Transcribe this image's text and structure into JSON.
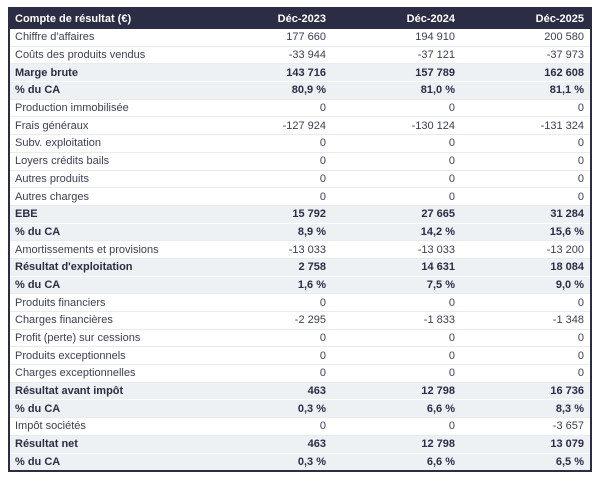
{
  "chart_data": {
    "type": "table",
    "title": "Compte de résultat (€)",
    "columns": [
      "Compte de résultat (€)",
      "Déc-2023",
      "Déc-2024",
      "Déc-2025"
    ],
    "rows": [
      {
        "label": "Chiffre d'affaires",
        "values": [
          "177 660",
          "194 910",
          "200 580"
        ],
        "emphasis": false
      },
      {
        "label": "Coûts des produits vendus",
        "values": [
          "-33 944",
          "-37 121",
          "-37 973"
        ],
        "emphasis": false
      },
      {
        "label": "Marge brute",
        "values": [
          "143 716",
          "157 789",
          "162 608"
        ],
        "emphasis": true
      },
      {
        "label": "% du CA",
        "values": [
          "80,9 %",
          "81,0 %",
          "81,1 %"
        ],
        "emphasis": true
      },
      {
        "label": "Production immobilisée",
        "values": [
          "0",
          "0",
          "0"
        ],
        "emphasis": false
      },
      {
        "label": "Frais généraux",
        "values": [
          "-127 924",
          "-130 124",
          "-131 324"
        ],
        "emphasis": false
      },
      {
        "label": "Subv. exploitation",
        "values": [
          "0",
          "0",
          "0"
        ],
        "emphasis": false
      },
      {
        "label": "Loyers crédits bails",
        "values": [
          "0",
          "0",
          "0"
        ],
        "emphasis": false
      },
      {
        "label": "Autres produits",
        "values": [
          "0",
          "0",
          "0"
        ],
        "emphasis": false
      },
      {
        "label": "Autres charges",
        "values": [
          "0",
          "0",
          "0"
        ],
        "emphasis": false
      },
      {
        "label": "EBE",
        "values": [
          "15 792",
          "27 665",
          "31 284"
        ],
        "emphasis": true
      },
      {
        "label": "% du CA",
        "values": [
          "8,9 %",
          "14,2 %",
          "15,6 %"
        ],
        "emphasis": true
      },
      {
        "label": "Amortissements et provisions",
        "values": [
          "-13 033",
          "-13 033",
          "-13 200"
        ],
        "emphasis": false
      },
      {
        "label": "Résultat d'exploitation",
        "values": [
          "2 758",
          "14 631",
          "18 084"
        ],
        "emphasis": true
      },
      {
        "label": "% du CA",
        "values": [
          "1,6 %",
          "7,5 %",
          "9,0 %"
        ],
        "emphasis": true
      },
      {
        "label": "Produits financiers",
        "values": [
          "0",
          "0",
          "0"
        ],
        "emphasis": false
      },
      {
        "label": "Charges financières",
        "values": [
          "-2 295",
          "-1 833",
          "-1 348"
        ],
        "emphasis": false
      },
      {
        "label": "Profit (perte) sur cessions",
        "values": [
          "0",
          "0",
          "0"
        ],
        "emphasis": false
      },
      {
        "label": "Produits exceptionnels",
        "values": [
          "0",
          "0",
          "0"
        ],
        "emphasis": false
      },
      {
        "label": "Charges exceptionnelles",
        "values": [
          "0",
          "0",
          "0"
        ],
        "emphasis": false
      },
      {
        "label": "Résultat avant impôt",
        "values": [
          "463",
          "12 798",
          "16 736"
        ],
        "emphasis": true
      },
      {
        "label": "% du CA",
        "values": [
          "0,3 %",
          "6,6 %",
          "8,3 %"
        ],
        "emphasis": true
      },
      {
        "label": "Impôt sociétés",
        "values": [
          "0",
          "0",
          "-3 657"
        ],
        "emphasis": false
      },
      {
        "label": "Résultat net",
        "values": [
          "463",
          "12 798",
          "13 079"
        ],
        "emphasis": true
      },
      {
        "label": "% du CA",
        "values": [
          "0,3 %",
          "6,6 %",
          "6,5 %"
        ],
        "emphasis": true
      }
    ]
  },
  "colors": {
    "header_bg": "#2b2d44",
    "header_text": "#ffffff",
    "table_border": "#2b2d44",
    "band_bg": "#edf1f4",
    "body_text": "#3c3e54",
    "strong_text": "#2b2d44",
    "row_divider": "#e7eaee"
  }
}
